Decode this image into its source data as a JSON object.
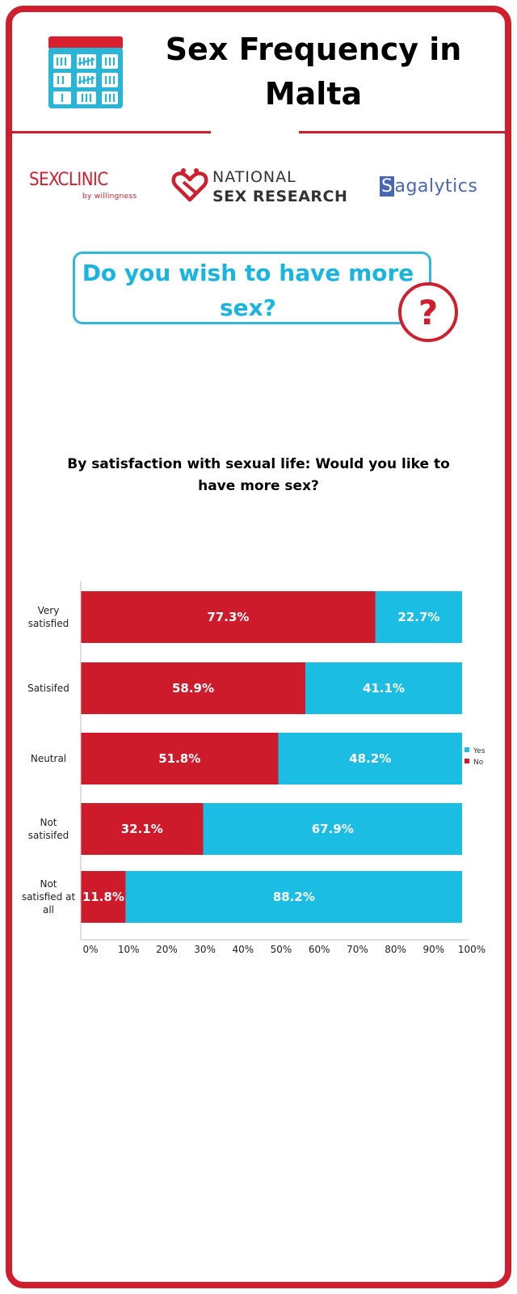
{
  "header": {
    "title": "Sex Frequency in Malta"
  },
  "logos": {
    "sexclinic": {
      "part1": "SEX",
      "part2": "CLINIC",
      "sub": "by willingness"
    },
    "national_sex_research": {
      "line1": "NATIONAL",
      "line2": "SEX RESEARCH"
    },
    "sagalytics": {
      "first": "S",
      "rest": "agalytics"
    }
  },
  "question": {
    "text": "Do you wish to have more sex?",
    "icon": "question-mark-circle-icon"
  },
  "colors": {
    "frame": "#cf1f2e",
    "no": "#cd1b2b",
    "yes": "#1bbde3",
    "question_text": "#1ab4de"
  },
  "chart_data": {
    "type": "bar",
    "orientation": "horizontal",
    "stacked": true,
    "title": "By satisfaction with sexual life: Would you like to have more sex?",
    "categories": [
      "Very satisfied",
      "Satisifed",
      "Neutral",
      "Not satisifed",
      "Not satisfied at all"
    ],
    "series": [
      {
        "name": "No",
        "values": [
          77.3,
          58.9,
          51.8,
          32.1,
          11.8
        ],
        "labels": [
          "77.3%",
          "58.9%",
          "51.8%",
          "32.1%",
          "11.8%"
        ]
      },
      {
        "name": "Yes",
        "values": [
          22.7,
          41.1,
          48.2,
          67.9,
          88.2
        ],
        "labels": [
          "22.7%",
          "41.1%",
          "48.2%",
          "67.9%",
          "88.2%"
        ]
      }
    ],
    "xlim": [
      0,
      100
    ],
    "xticks": [
      "0%",
      "10%",
      "20%",
      "30%",
      "40%",
      "50%",
      "60%",
      "70%",
      "80%",
      "90%",
      "100%"
    ],
    "legend": {
      "placement": "right",
      "entries": [
        "Yes",
        "No"
      ]
    },
    "grid": false
  }
}
